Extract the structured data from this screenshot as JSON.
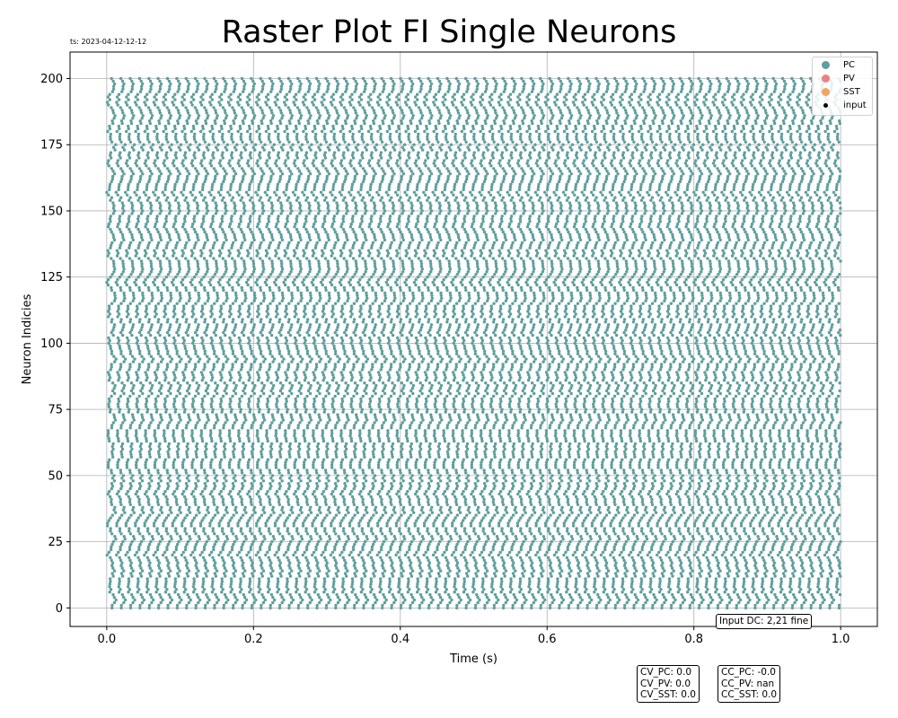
{
  "chart_data": {
    "type": "scatter",
    "title": "Raster Plot FI Single Neurons",
    "timestamp": "ts: 2023-04-12-12-12",
    "xlabel": "Time (s)",
    "ylabel": "Neuron Indicies",
    "xlim": [
      -0.05,
      1.05
    ],
    "ylim": [
      -7,
      210
    ],
    "xticks": [
      "0.0",
      "0.2",
      "0.4",
      "0.6",
      "0.8",
      "1.0"
    ],
    "yticks": [
      "0",
      "25",
      "50",
      "75",
      "100",
      "125",
      "150",
      "175",
      "200"
    ],
    "grid": true,
    "legend_position": "top-right",
    "series": [
      {
        "name": "PC",
        "color": "#5f9e9e",
        "neurons": [
          0,
          200
        ],
        "time_range": [
          0.0,
          1.0
        ],
        "approx_isi_s": 0.0127,
        "spike_count_per_neuron": 79
      },
      {
        "name": "PV",
        "color": "#f08080",
        "values": []
      },
      {
        "name": "SST",
        "color": "#f4a460",
        "values": []
      },
      {
        "name": "input",
        "color": "#000000",
        "values": []
      }
    ],
    "annotations": {
      "input_dc": "Input DC: 2,21 fine",
      "cv_lines": [
        "CV_PC: 0.0",
        "CV_PV: 0.0",
        "CV_SST: 0.0"
      ],
      "cc_lines": [
        "CC_PC: -0.0",
        "CC_PV: nan",
        "CC_SST: 0.0"
      ]
    }
  }
}
